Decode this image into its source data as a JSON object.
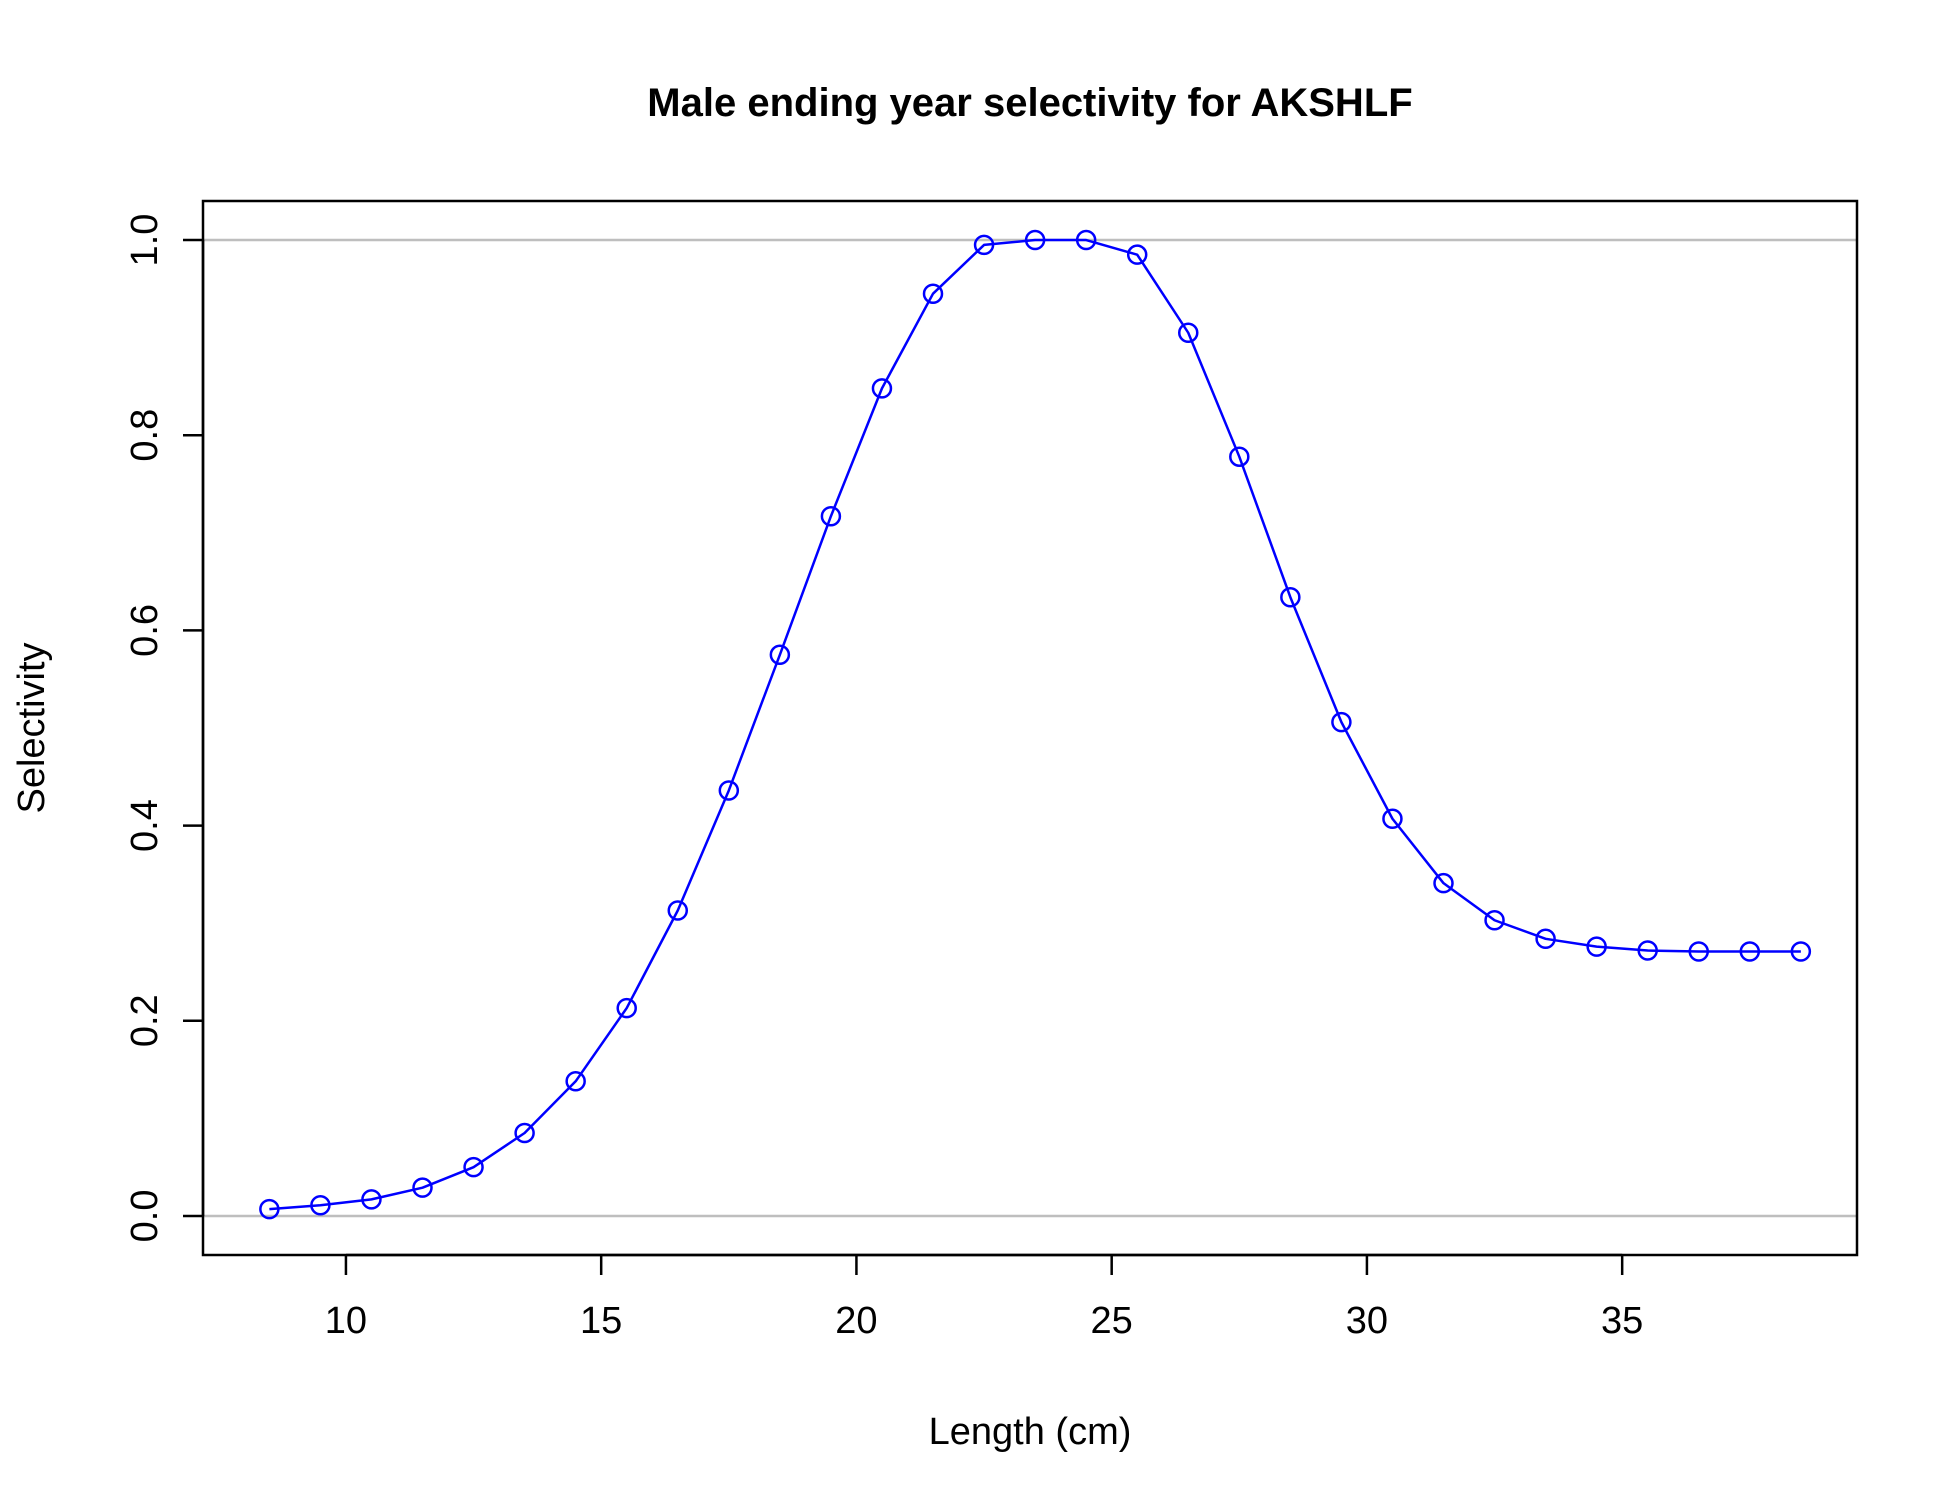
{
  "chart_data": {
    "type": "line",
    "title": "Male ending year selectivity for AKSHLF",
    "xlabel": "Length (cm)",
    "ylabel": "Selectivity",
    "xlim": [
      7.2,
      39.6
    ],
    "ylim": [
      -0.04,
      1.04
    ],
    "xticks": [
      10,
      15,
      20,
      25,
      30,
      35
    ],
    "yticks": [
      0.0,
      0.2,
      0.4,
      0.6,
      0.8,
      1.0
    ],
    "xtick_labels": [
      "10",
      "15",
      "20",
      "25",
      "30",
      "35"
    ],
    "ytick_labels": [
      "0.0",
      "0.2",
      "0.4",
      "0.6",
      "0.8",
      "1.0"
    ],
    "reference_lines": [
      0,
      1
    ],
    "colors": {
      "series": "#0000ff",
      "reference": "#bebebe",
      "axes": "#000000"
    },
    "series": [
      {
        "x": [
          8.5,
          9.5,
          10.5,
          11.5,
          12.5,
          13.5,
          14.5,
          15.5,
          16.5,
          17.5,
          18.5,
          19.5,
          20.5,
          21.5,
          22.5,
          23.5,
          24.5,
          25.5,
          26.5,
          27.5,
          28.5,
          29.5,
          30.5,
          31.5,
          32.5,
          33.5,
          34.5,
          35.5,
          36.5,
          37.5,
          38.5
        ],
        "y": [
          0.007,
          0.011,
          0.017,
          0.029,
          0.05,
          0.085,
          0.138,
          0.213,
          0.313,
          0.436,
          0.575,
          0.717,
          0.848,
          0.945,
          0.995,
          1.0,
          1.0,
          0.985,
          0.905,
          0.778,
          0.634,
          0.506,
          0.407,
          0.341,
          0.303,
          0.284,
          0.276,
          0.272,
          0.271,
          0.271,
          0.271
        ]
      }
    ]
  }
}
